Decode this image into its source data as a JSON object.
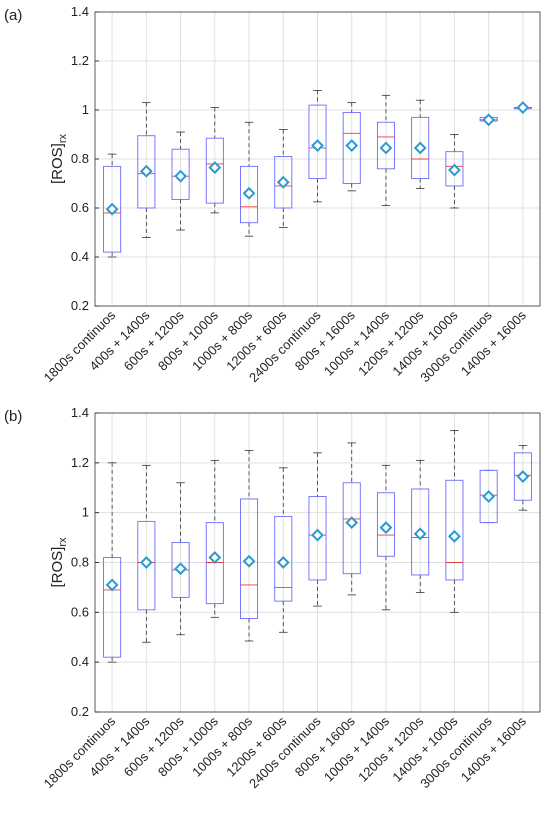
{
  "chart_data": [
    {
      "type": "box",
      "panel": "(a)",
      "ylabel": {
        "text": "[ROS]",
        "subscript": "rx"
      },
      "categories": [
        "1800s continuos",
        "400s + 1400s",
        "600s + 1200s",
        "800s + 1000s",
        "1000s + 800s",
        "1200s + 600s",
        "2400s continuos",
        "800s + 1600s",
        "1000s + 1400s",
        "1200s + 1200s",
        "1400s + 1000s",
        "3000s continuos",
        "1400s + 1600s"
      ],
      "max": [
        0.82,
        1.03,
        0.91,
        1.01,
        0.95,
        0.92,
        1.08,
        1.03,
        1.06,
        1.04,
        0.9,
        0.97,
        1.015
      ],
      "q3": [
        0.77,
        0.895,
        0.84,
        0.885,
        0.77,
        0.81,
        1.02,
        0.99,
        0.95,
        0.97,
        0.83,
        0.97,
        1.01
      ],
      "median": [
        0.58,
        0.74,
        0.73,
        0.78,
        0.605,
        0.69,
        0.845,
        0.905,
        0.89,
        0.8,
        0.77,
        0.96,
        1.01
      ],
      "q1": [
        0.42,
        0.6,
        0.635,
        0.62,
        0.54,
        0.6,
        0.72,
        0.7,
        0.76,
        0.72,
        0.69,
        0.955,
        1.005
      ],
      "min": [
        0.4,
        0.48,
        0.51,
        0.58,
        0.485,
        0.52,
        0.625,
        0.67,
        0.61,
        0.68,
        0.6,
        0.955,
        1.005
      ],
      "mean": [
        0.595,
        0.75,
        0.73,
        0.765,
        0.66,
        0.705,
        0.855,
        0.855,
        0.845,
        0.845,
        0.755,
        0.96,
        1.01
      ],
      "ylim": [
        0.2,
        1.4
      ],
      "yticks": [
        0.2,
        0.4,
        0.6,
        0.8,
        1,
        1.2,
        1.4
      ],
      "grid": true,
      "box_color": "#6b6bff",
      "median_color": "#e04040",
      "mean_color": "#2a9ad0"
    },
    {
      "type": "box",
      "panel": "(b)",
      "ylabel": {
        "text": "[ROS]",
        "subscript": "rx"
      },
      "categories": [
        "1800s continuos",
        "400s + 1400s",
        "600s + 1200s",
        "800s + 1000s",
        "1000s + 800s",
        "1200s + 600s",
        "2400s continuos",
        "800s + 1600s",
        "1000s + 1400s",
        "1200s + 1200s",
        "1400s + 1000s",
        "3000s continuos",
        "1400s + 1600s"
      ],
      "max": [
        1.2,
        1.19,
        1.12,
        1.21,
        1.25,
        1.18,
        1.24,
        1.28,
        1.19,
        1.21,
        1.33,
        1.17,
        1.27
      ],
      "q3": [
        0.82,
        0.965,
        0.88,
        0.96,
        1.055,
        0.985,
        1.065,
        1.12,
        1.08,
        1.095,
        1.13,
        1.17,
        1.24
      ],
      "median": [
        0.69,
        0.8,
        0.77,
        0.8,
        0.71,
        0.7,
        0.91,
        0.975,
        0.91,
        0.9,
        0.8,
        1.07,
        1.15
      ],
      "q1": [
        0.42,
        0.61,
        0.66,
        0.635,
        0.575,
        0.645,
        0.73,
        0.755,
        0.825,
        0.75,
        0.73,
        0.96,
        1.05
      ],
      "min": [
        0.4,
        0.48,
        0.51,
        0.58,
        0.485,
        0.52,
        0.625,
        0.67,
        0.61,
        0.68,
        0.6,
        0.96,
        1.01
      ],
      "mean": [
        0.71,
        0.8,
        0.775,
        0.82,
        0.805,
        0.8,
        0.91,
        0.96,
        0.94,
        0.915,
        0.905,
        1.065,
        1.145
      ],
      "ylim": [
        0.2,
        1.4
      ],
      "yticks": [
        0.2,
        0.4,
        0.6,
        0.8,
        1,
        1.2,
        1.4
      ],
      "grid": true,
      "box_color": "#6b6bff",
      "median_color": "#e04040",
      "mean_color": "#2a9ad0"
    }
  ]
}
